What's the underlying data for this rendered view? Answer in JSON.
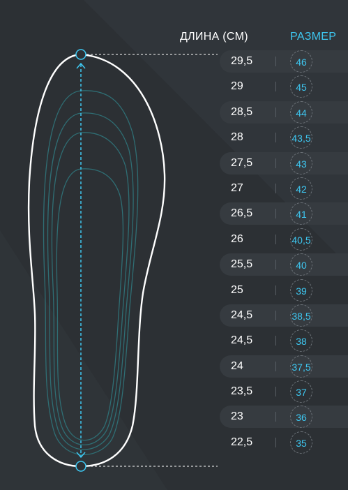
{
  "header": {
    "length_label": "ДЛИНА (СМ)",
    "size_label": "РАЗМЕР"
  },
  "colors": {
    "background": "#2c3034",
    "accent": "#3ec8f2",
    "row_shade": "#363b40"
  },
  "rows": [
    {
      "length": "29,5",
      "size": "46"
    },
    {
      "length": "29",
      "size": "45"
    },
    {
      "length": "28,5",
      "size": "44"
    },
    {
      "length": "28",
      "size": "43,5"
    },
    {
      "length": "27,5",
      "size": "43"
    },
    {
      "length": "27",
      "size": "42"
    },
    {
      "length": "26,5",
      "size": "41"
    },
    {
      "length": "26",
      "size": "40,5"
    },
    {
      "length": "25,5",
      "size": "40"
    },
    {
      "length": "25",
      "size": "39"
    },
    {
      "length": "24,5",
      "size": "38,5"
    },
    {
      "length": "24,5",
      "size": "38"
    },
    {
      "length": "24",
      "size": "37,5"
    },
    {
      "length": "23,5",
      "size": "37"
    },
    {
      "length": "23",
      "size": "36"
    },
    {
      "length": "22,5",
      "size": "35"
    }
  ]
}
